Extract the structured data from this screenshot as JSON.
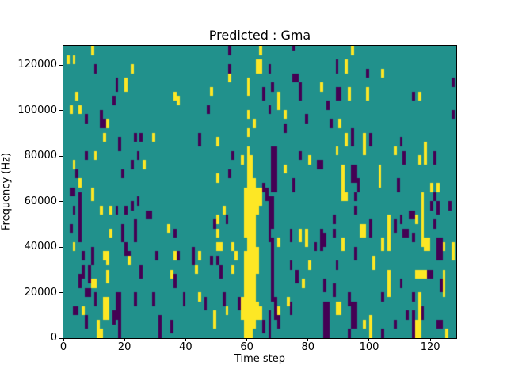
{
  "title": "Predicted : Gma",
  "chart_data": {
    "type": "heatmap",
    "title": "Predicted : Gma",
    "xlabel": "Time step",
    "ylabel": "Frequency (Hz)",
    "xlim": [
      0,
      128.5
    ],
    "ylim": [
      0,
      128500
    ],
    "x_ticks": [
      0,
      20,
      40,
      60,
      80,
      100,
      120
    ],
    "y_ticks": [
      0,
      20000,
      40000,
      60000,
      80000,
      100000,
      120000
    ],
    "grid_cols": 128,
    "grid_rows": 64,
    "hz_per_row": 2000,
    "legend": "none",
    "grid_lines": false,
    "colors": {
      "mid": "#21918c",
      "low": "#440154",
      "high": "#fde725"
    },
    "cell_format": "[time_col, freq_bin_from_bottom, height_in_bins, optional_width_in_cols]",
    "cells_high": [
      [
        9,
        62,
        2
      ],
      [
        1,
        60,
        2
      ],
      [
        3,
        60,
        2
      ],
      [
        22,
        58,
        2
      ],
      [
        20,
        54,
        3
      ],
      [
        4,
        52,
        2
      ],
      [
        36,
        52,
        2
      ],
      [
        37,
        51,
        2
      ],
      [
        2,
        49,
        2
      ],
      [
        5,
        49,
        2
      ],
      [
        14,
        46,
        2
      ],
      [
        13,
        43,
        2
      ],
      [
        29,
        43,
        2
      ],
      [
        10,
        39,
        2
      ],
      [
        3,
        37,
        2
      ],
      [
        26,
        37,
        2
      ],
      [
        5,
        33,
        2
      ],
      [
        9,
        30,
        3
      ],
      [
        12,
        27,
        2
      ],
      [
        15,
        27,
        2
      ],
      [
        34,
        23,
        2
      ],
      [
        15,
        22,
        2
      ],
      [
        3,
        19,
        2
      ],
      [
        13,
        17,
        2,
        2
      ],
      [
        36,
        17,
        2
      ],
      [
        14,
        16,
        2
      ],
      [
        21,
        16,
        2
      ],
      [
        14,
        12,
        3
      ],
      [
        9,
        11,
        2,
        2
      ],
      [
        35,
        13,
        2
      ],
      [
        6,
        5,
        2
      ],
      [
        13,
        4,
        5,
        2
      ],
      [
        11,
        0,
        4
      ],
      [
        12,
        0,
        2
      ],
      [
        64,
        62,
        2
      ],
      [
        63,
        58,
        3,
        2
      ],
      [
        54,
        56,
        2
      ],
      [
        60,
        53,
        4
      ],
      [
        48,
        53,
        2
      ],
      [
        70,
        52,
        2
      ],
      [
        84,
        54,
        2
      ],
      [
        70,
        50,
        2
      ],
      [
        60,
        48,
        2
      ],
      [
        72,
        48,
        2
      ],
      [
        62,
        46,
        2
      ],
      [
        60,
        44,
        2
      ],
      [
        50,
        42,
        2
      ],
      [
        58,
        38,
        2
      ],
      [
        80,
        38,
        2
      ],
      [
        72,
        36,
        2
      ],
      [
        50,
        34,
        2
      ],
      [
        59,
        22,
        11
      ],
      [
        59,
        0,
        19
      ],
      [
        60,
        0,
        42
      ],
      [
        61,
        0,
        40
      ],
      [
        62,
        2,
        33
      ],
      [
        63,
        27,
        6
      ],
      [
        63,
        14,
        6
      ],
      [
        63,
        4,
        4
      ],
      [
        58,
        4,
        5
      ],
      [
        64,
        29,
        4
      ],
      [
        64,
        4,
        3
      ],
      [
        52,
        27,
        2
      ],
      [
        50,
        25,
        2
      ],
      [
        50,
        22,
        2
      ],
      [
        44,
        17,
        2
      ],
      [
        50,
        19,
        2,
        2
      ],
      [
        55,
        19,
        2
      ],
      [
        56,
        17,
        2
      ],
      [
        43,
        14,
        2
      ],
      [
        55,
        14,
        2
      ],
      [
        44,
        8,
        2
      ],
      [
        49,
        2,
        4
      ],
      [
        53,
        5,
        2
      ],
      [
        70,
        20,
        2
      ],
      [
        70,
        5,
        2
      ],
      [
        73,
        7,
        2
      ],
      [
        77,
        21,
        3
      ],
      [
        79,
        20,
        4
      ],
      [
        80,
        15,
        2
      ],
      [
        78,
        11,
        2
      ],
      [
        94,
        62,
        2
      ],
      [
        92,
        58,
        3
      ],
      [
        104,
        57,
        2
      ],
      [
        93,
        52,
        3
      ],
      [
        99,
        52,
        3
      ],
      [
        116,
        52,
        2
      ],
      [
        90,
        46,
        2
      ],
      [
        92,
        42,
        3
      ],
      [
        98,
        42,
        3
      ],
      [
        89,
        40,
        2
      ],
      [
        98,
        40,
        2
      ],
      [
        108,
        40,
        2
      ],
      [
        116,
        38,
        2
      ],
      [
        118,
        38,
        5
      ],
      [
        91,
        32,
        6
      ],
      [
        103,
        33,
        5
      ],
      [
        120,
        32,
        2
      ],
      [
        122,
        32,
        2
      ],
      [
        91,
        30,
        2,
        2
      ],
      [
        106,
        25,
        2
      ],
      [
        115,
        25,
        2
      ],
      [
        117,
        20,
        12
      ],
      [
        97,
        22,
        3,
        2
      ],
      [
        106,
        19,
        8
      ],
      [
        104,
        19,
        3
      ],
      [
        118,
        19,
        3,
        2
      ],
      [
        124,
        19,
        2
      ],
      [
        91,
        19,
        3
      ],
      [
        101,
        15,
        3
      ],
      [
        106,
        9,
        6
      ],
      [
        115,
        13,
        2,
        4
      ],
      [
        124,
        9,
        6
      ],
      [
        116,
        4,
        6
      ],
      [
        89,
        5,
        3,
        2
      ],
      [
        98,
        2,
        2
      ],
      [
        100,
        0,
        5
      ],
      [
        115,
        0,
        4,
        2
      ],
      [
        125,
        0,
        2
      ],
      [
        127,
        17,
        4
      ]
    ],
    "cells_low": [
      [
        10,
        58,
        2
      ],
      [
        17,
        54,
        3
      ],
      [
        16,
        51,
        2
      ],
      [
        12,
        48,
        2
      ],
      [
        7,
        47,
        2
      ],
      [
        12,
        46,
        2
      ],
      [
        13,
        46,
        2
      ],
      [
        23,
        43,
        2
      ],
      [
        25,
        43,
        2
      ],
      [
        18,
        42,
        2
      ],
      [
        18,
        41,
        2
      ],
      [
        7,
        39,
        2
      ],
      [
        24,
        39,
        2
      ],
      [
        22,
        37,
        2
      ],
      [
        4,
        35,
        2
      ],
      [
        19,
        35,
        2
      ],
      [
        2,
        31,
        2,
        2
      ],
      [
        5,
        21,
        11
      ],
      [
        3,
        27,
        2
      ],
      [
        17,
        27,
        2
      ],
      [
        20,
        27,
        2
      ],
      [
        22,
        28,
        2
      ],
      [
        24,
        29,
        2
      ],
      [
        27,
        26,
        2,
        2
      ],
      [
        2,
        23,
        2
      ],
      [
        36,
        22,
        2
      ],
      [
        19,
        21,
        4
      ],
      [
        23,
        21,
        5
      ],
      [
        20,
        18,
        3
      ],
      [
        6,
        17,
        2
      ],
      [
        9,
        16,
        4
      ],
      [
        21,
        17,
        2
      ],
      [
        30,
        17,
        2
      ],
      [
        37,
        17,
        2
      ],
      [
        42,
        16,
        4
      ],
      [
        6,
        13,
        3
      ],
      [
        8,
        12,
        4
      ],
      [
        25,
        13,
        3
      ],
      [
        36,
        11,
        3
      ],
      [
        5,
        11,
        3
      ],
      [
        7,
        9,
        2,
        2
      ],
      [
        10,
        7,
        3
      ],
      [
        17,
        4,
        6,
        2
      ],
      [
        23,
        7,
        3
      ],
      [
        29,
        7,
        3
      ],
      [
        39,
        7,
        3
      ],
      [
        3,
        5,
        2,
        2
      ],
      [
        16,
        3,
        3
      ],
      [
        18,
        3,
        3
      ],
      [
        7,
        2,
        3
      ],
      [
        18,
        0,
        3
      ],
      [
        31,
        0,
        5
      ],
      [
        35,
        1,
        3
      ],
      [
        54,
        62,
        2
      ],
      [
        75,
        63,
        1
      ],
      [
        67,
        58,
        2
      ],
      [
        54,
        58,
        2
      ],
      [
        75,
        56,
        2,
        2
      ],
      [
        77,
        52,
        4
      ],
      [
        68,
        54,
        2
      ],
      [
        65,
        52,
        3
      ],
      [
        47,
        49,
        2
      ],
      [
        67,
        49,
        2
      ],
      [
        79,
        47,
        2
      ],
      [
        72,
        45,
        2
      ],
      [
        44,
        42,
        3
      ],
      [
        55,
        39,
        2
      ],
      [
        77,
        39,
        2
      ],
      [
        83,
        37,
        2,
        2
      ],
      [
        54,
        35,
        2
      ],
      [
        75,
        32,
        3
      ],
      [
        65,
        32,
        2
      ],
      [
        66,
        30,
        3
      ],
      [
        67,
        21,
        10
      ],
      [
        67,
        0,
        6
      ],
      [
        68,
        8,
        14
      ],
      [
        68,
        24,
        7
      ],
      [
        68,
        32,
        10,
        2
      ],
      [
        69,
        4,
        5
      ],
      [
        70,
        2,
        3
      ],
      [
        65,
        1,
        3
      ],
      [
        53,
        25,
        2
      ],
      [
        49,
        24,
        2
      ],
      [
        48,
        16,
        2
      ],
      [
        50,
        16,
        2
      ],
      [
        51,
        13,
        3
      ],
      [
        46,
        6,
        3
      ],
      [
        52,
        7,
        3
      ],
      [
        57,
        6,
        3
      ],
      [
        74,
        21,
        3
      ],
      [
        74,
        15,
        2
      ],
      [
        76,
        12,
        3
      ],
      [
        82,
        19,
        2
      ],
      [
        84,
        19,
        5
      ],
      [
        74,
        5,
        3
      ],
      [
        89,
        58,
        3
      ],
      [
        99,
        57,
        2
      ],
      [
        127,
        55,
        2
      ],
      [
        89,
        52,
        3,
        2
      ],
      [
        114,
        52,
        2
      ],
      [
        86,
        50,
        2
      ],
      [
        127,
        48,
        2
      ],
      [
        87,
        46,
        2
      ],
      [
        94,
        42,
        4
      ],
      [
        100,
        42,
        3
      ],
      [
        110,
        42,
        2
      ],
      [
        111,
        38,
        3
      ],
      [
        121,
        38,
        3
      ],
      [
        94,
        34,
        4,
        2
      ],
      [
        96,
        32,
        3
      ],
      [
        109,
        32,
        3
      ],
      [
        95,
        30,
        2
      ],
      [
        95,
        27,
        2
      ],
      [
        88,
        25,
        2
      ],
      [
        110,
        25,
        2
      ],
      [
        113,
        26,
        2,
        2
      ],
      [
        120,
        28,
        2
      ],
      [
        121,
        30,
        2
      ],
      [
        122,
        27,
        3
      ],
      [
        126,
        28,
        2
      ],
      [
        100,
        24,
        2
      ],
      [
        100,
        22,
        2
      ],
      [
        108,
        23,
        3
      ],
      [
        111,
        22,
        2,
        2
      ],
      [
        114,
        21,
        2
      ],
      [
        121,
        24,
        2
      ],
      [
        122,
        17,
        5,
        2
      ],
      [
        88,
        22,
        2
      ],
      [
        85,
        20,
        3
      ],
      [
        95,
        17,
        3
      ],
      [
        89,
        15,
        2
      ],
      [
        85,
        10,
        3
      ],
      [
        88,
        9,
        3
      ],
      [
        104,
        8,
        2
      ],
      [
        110,
        11,
        2
      ],
      [
        119,
        13,
        2,
        2
      ],
      [
        123,
        10,
        3
      ],
      [
        114,
        8,
        2
      ],
      [
        117,
        4,
        3
      ],
      [
        93,
        7,
        3
      ],
      [
        94,
        2,
        6,
        2
      ],
      [
        85,
        0,
        8,
        2
      ],
      [
        93,
        0,
        2
      ],
      [
        108,
        2,
        2
      ],
      [
        112,
        4,
        2
      ],
      [
        114,
        0,
        6
      ],
      [
        122,
        2,
        2,
        2
      ],
      [
        104,
        0,
        2
      ]
    ]
  }
}
